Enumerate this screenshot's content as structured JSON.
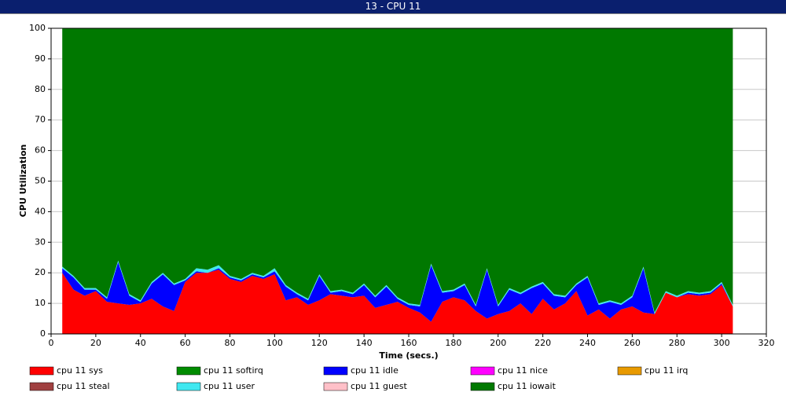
{
  "chart_data": {
    "type": "stacked_area",
    "title": "13 - CPU 11",
    "xlabel": "Time (secs.)",
    "ylabel": "CPU Utilization",
    "x": [
      5,
      10,
      15,
      20,
      25,
      30,
      35,
      40,
      45,
      50,
      55,
      60,
      65,
      70,
      75,
      80,
      85,
      90,
      95,
      100,
      105,
      110,
      115,
      120,
      125,
      130,
      135,
      140,
      145,
      150,
      155,
      160,
      165,
      170,
      175,
      180,
      185,
      190,
      195,
      200,
      205,
      210,
      215,
      220,
      225,
      230,
      235,
      240,
      245,
      250,
      255,
      260,
      265,
      270,
      275,
      280,
      285,
      290,
      295,
      300,
      305
    ],
    "xlim": [
      0,
      320
    ],
    "xticks": [
      0,
      20,
      40,
      60,
      80,
      100,
      120,
      140,
      160,
      180,
      200,
      220,
      240,
      260,
      280,
      300,
      320
    ],
    "ylim": [
      0,
      100
    ],
    "yticks": [
      0,
      10,
      20,
      30,
      40,
      50,
      60,
      70,
      80,
      90,
      100
    ],
    "grid": true,
    "series": [
      {
        "name": "cpu 11 sys",
        "color": "#ff0000",
        "values": [
          20,
          14.5,
          12.5,
          14,
          10.5,
          10,
          9.5,
          10,
          11.5,
          9,
          7.5,
          17,
          20,
          20,
          21,
          18,
          17,
          19,
          18,
          19.5,
          11,
          12,
          9.5,
          11,
          13,
          12.5,
          12,
          12.5,
          8.5,
          9.5,
          10.5,
          8.5,
          7,
          4,
          10.5,
          12,
          11,
          7.5,
          5,
          6.5,
          7.5,
          10,
          6.5,
          11.5,
          8,
          10,
          14,
          6,
          8,
          5,
          8,
          9,
          7,
          6.5,
          13.5,
          12,
          13,
          12.5,
          13,
          16,
          9
        ]
      },
      {
        "name": "cpu 11 softirq",
        "color": "#008c00",
        "values": [
          0,
          0,
          0,
          0,
          0,
          0,
          0,
          0,
          0,
          0,
          0,
          0,
          0,
          0,
          0,
          0,
          0,
          0,
          0,
          0,
          0,
          0,
          0,
          0,
          0,
          0,
          0,
          0,
          0,
          0,
          0,
          0,
          0,
          0,
          0,
          0,
          0,
          0,
          0,
          0,
          0,
          0,
          0,
          0,
          0,
          0,
          0,
          0,
          0,
          0,
          0,
          0,
          0,
          0,
          0,
          0,
          0,
          0,
          0,
          0,
          0
        ]
      },
      {
        "name": "cpu 11 idle",
        "color": "#0000ff",
        "values": [
          1.5,
          4,
          2,
          0.5,
          1,
          13.5,
          3,
          0.5,
          5,
          10.5,
          8.5,
          0.5,
          0.5,
          0,
          0.5,
          0.5,
          0.5,
          0.5,
          0.5,
          1,
          4.5,
          1,
          1.5,
          8,
          0.5,
          1.5,
          1,
          3.5,
          3.5,
          6,
          1,
          1,
          2,
          18.5,
          3,
          2,
          5,
          1.5,
          16,
          2.5,
          7,
          3,
          8.5,
          5,
          4.5,
          2,
          2,
          12.5,
          1.5,
          5.5,
          1.5,
          3,
          14.5,
          0,
          0,
          0,
          0.5,
          0.5,
          0.5,
          0.5,
          0
        ]
      },
      {
        "name": "cpu 11 nice",
        "color": "#ff00ff",
        "values": [
          0,
          0,
          0,
          0,
          0,
          0,
          0,
          0,
          0,
          0,
          0,
          0,
          0,
          0,
          0,
          0,
          0,
          0,
          0,
          0,
          0,
          0,
          0,
          0,
          0,
          0,
          0,
          0,
          0,
          0,
          0,
          0,
          0,
          0,
          0,
          0,
          0,
          0,
          0,
          0,
          0,
          0,
          0,
          0,
          0,
          0,
          0,
          0,
          0,
          0,
          0,
          0,
          0,
          0,
          0,
          0,
          0,
          0,
          0,
          0,
          0
        ]
      },
      {
        "name": "cpu 11 irq",
        "color": "#e89a00",
        "values": [
          0,
          0,
          0,
          0,
          0,
          0,
          0,
          0,
          0,
          0,
          0,
          0,
          0,
          0,
          0,
          0,
          0,
          0,
          0,
          0,
          0,
          0,
          0,
          0,
          0,
          0,
          0,
          0,
          0,
          0,
          0,
          0,
          0,
          0,
          0,
          0,
          0,
          0,
          0,
          0,
          0,
          0,
          0,
          0,
          0,
          0,
          0,
          0,
          0,
          0,
          0,
          0,
          0,
          0,
          0,
          0,
          0,
          0,
          0,
          0,
          0
        ]
      },
      {
        "name": "cpu 11 steal",
        "color": "#a04040",
        "values": [
          0,
          0,
          0,
          0,
          0,
          0,
          0,
          0,
          0,
          0,
          0,
          0,
          0,
          0,
          0,
          0,
          0,
          0,
          0,
          0,
          0,
          0,
          0,
          0,
          0,
          0,
          0,
          0,
          0,
          0,
          0,
          0,
          0,
          0,
          0,
          0,
          0,
          0,
          0,
          0,
          0,
          0,
          0,
          0,
          0,
          0,
          0,
          0,
          0,
          0,
          0,
          0,
          0,
          0,
          0,
          0,
          0,
          0,
          0,
          0,
          0
        ]
      },
      {
        "name": "cpu 11 user",
        "color": "#40e8f0",
        "values": [
          0.5,
          0.5,
          0.5,
          0.5,
          0.5,
          0.5,
          0.5,
          0.5,
          0.5,
          0.5,
          0.5,
          0.5,
          1,
          1,
          1,
          0.5,
          0.5,
          0.5,
          0.5,
          1,
          0.5,
          0.5,
          0.5,
          0.5,
          0.5,
          0.5,
          0.5,
          0.5,
          0.5,
          0.5,
          0.5,
          0.5,
          0.5,
          0.5,
          0.5,
          0.5,
          0.5,
          0.5,
          0.5,
          0.5,
          0.5,
          0.5,
          0.5,
          0.5,
          0.5,
          0.5,
          0.5,
          0.5,
          0.5,
          0.5,
          0.5,
          0.5,
          0.5,
          0.5,
          0.5,
          0.5,
          0.5,
          0.5,
          0.5,
          0.5,
          0.5
        ]
      },
      {
        "name": "cpu 11 guest",
        "color": "#ffc0c8",
        "values": [
          0,
          0,
          0,
          0,
          0,
          0,
          0,
          0,
          0,
          0,
          0,
          0,
          0,
          0,
          0,
          0,
          0,
          0,
          0,
          0,
          0,
          0,
          0,
          0,
          0,
          0,
          0,
          0,
          0,
          0,
          0,
          0,
          0,
          0,
          0,
          0,
          0,
          0,
          0,
          0,
          0,
          0,
          0,
          0,
          0,
          0,
          0,
          0,
          0,
          0,
          0,
          0,
          0,
          0,
          0,
          0,
          0,
          0,
          0,
          0,
          0
        ]
      },
      {
        "name": "cpu 11 iowait",
        "color": "#007800",
        "values": [
          78,
          81,
          85,
          85,
          88,
          76,
          87,
          89,
          83,
          80,
          83.5,
          82,
          78.5,
          79,
          77.5,
          81,
          82,
          80,
          81,
          78.5,
          84,
          86.5,
          88.5,
          80.5,
          86,
          85.5,
          86.5,
          83.5,
          87.5,
          84,
          88,
          90,
          90.5,
          77,
          86,
          85.5,
          83.5,
          90.5,
          78.5,
          90.5,
          85,
          86.5,
          84.5,
          83,
          87,
          87.5,
          83.5,
          81,
          90,
          89,
          90,
          87.5,
          78,
          93,
          86,
          87.5,
          86,
          86.5,
          86,
          83,
          90.5
        ]
      }
    ]
  }
}
